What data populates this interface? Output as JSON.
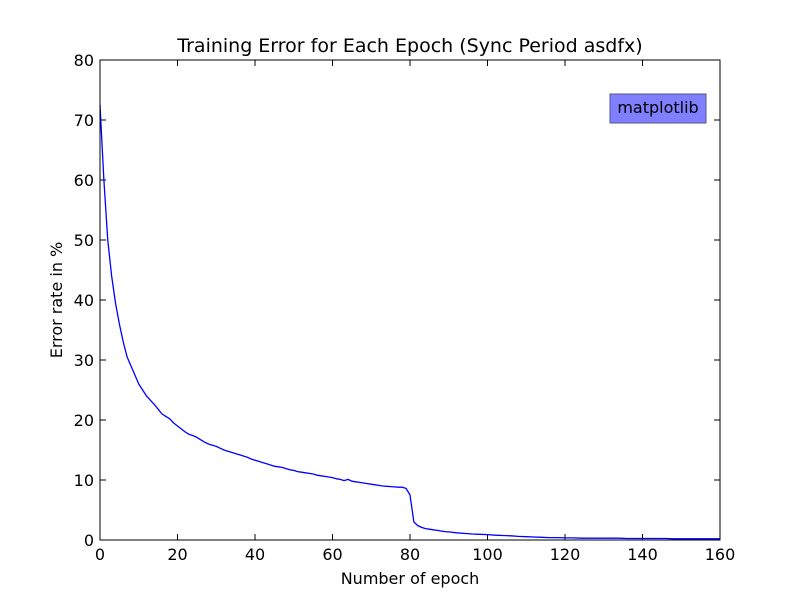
{
  "chart_data": {
    "type": "line",
    "title": "Training Error for Each Epoch (Sync Period asdfx)",
    "xlabel": "Number of epoch",
    "ylabel": "Error rate in %",
    "xlim": [
      0,
      160
    ],
    "ylim": [
      0,
      80
    ],
    "x_ticks": [
      0,
      20,
      40,
      60,
      80,
      100,
      120,
      140,
      160
    ],
    "y_ticks": [
      0,
      10,
      20,
      30,
      40,
      50,
      60,
      70,
      80
    ],
    "grid": false,
    "annotation": {
      "text": "matplotlib",
      "position": "top-right"
    },
    "colors": {
      "line": "#0000ff",
      "annotation_fill": "#7f7fff",
      "annotation_edge": "#555588"
    },
    "series": [
      {
        "x": [
          0,
          1,
          2,
          3,
          4,
          5,
          6,
          7,
          8,
          9,
          10,
          11,
          12,
          13,
          14,
          15,
          16,
          17,
          18,
          19,
          20,
          21,
          22,
          23,
          24,
          25,
          26,
          27,
          28,
          29,
          30,
          31,
          32,
          33,
          34,
          35,
          36,
          37,
          38,
          39,
          40,
          41,
          42,
          43,
          44,
          45,
          46,
          47,
          48,
          49,
          50,
          51,
          52,
          53,
          54,
          55,
          56,
          57,
          58,
          59,
          60,
          61,
          62,
          63,
          64,
          65,
          66,
          67,
          68,
          69,
          70,
          71,
          72,
          73,
          74,
          75,
          76,
          77,
          78,
          79,
          80,
          81,
          82,
          83,
          84,
          85,
          86,
          87,
          88,
          89,
          90,
          92,
          94,
          96,
          98,
          100,
          102,
          104,
          106,
          108,
          110,
          112,
          114,
          116,
          118,
          120,
          122,
          124,
          126,
          128,
          130,
          132,
          134,
          136,
          138,
          140,
          142,
          144,
          146,
          148,
          150,
          152,
          154,
          156,
          158,
          160
        ],
        "y": [
          72.5,
          60,
          50,
          44,
          39.5,
          36,
          33,
          30.5,
          29,
          27.5,
          26,
          25,
          24,
          23.3,
          22.6,
          21.8,
          21,
          20.6,
          20.2,
          19.5,
          19,
          18.5,
          18,
          17.6,
          17.4,
          17.1,
          16.7,
          16.3,
          16,
          15.8,
          15.6,
          15.3,
          15,
          14.8,
          14.6,
          14.4,
          14.2,
          14,
          13.8,
          13.5,
          13.3,
          13.1,
          12.9,
          12.7,
          12.5,
          12.3,
          12.2,
          12.1,
          11.9,
          11.7,
          11.6,
          11.4,
          11.3,
          11.2,
          11.1,
          11,
          10.8,
          10.7,
          10.6,
          10.5,
          10.4,
          10.2,
          10.1,
          9.9,
          10.1,
          9.8,
          9.7,
          9.6,
          9.5,
          9.4,
          9.3,
          9.2,
          9.1,
          9,
          8.95,
          8.9,
          8.85,
          8.8,
          8.8,
          8.6,
          7.5,
          3,
          2.4,
          2.1,
          1.9,
          1.8,
          1.7,
          1.6,
          1.5,
          1.4,
          1.35,
          1.2,
          1.1,
          1,
          0.95,
          0.9,
          0.8,
          0.75,
          0.7,
          0.6,
          0.55,
          0.5,
          0.45,
          0.4,
          0.4,
          0.35,
          0.35,
          0.3,
          0.3,
          0.3,
          0.3,
          0.3,
          0.3,
          0.25,
          0.25,
          0.25,
          0.25,
          0.25,
          0.25,
          0.2,
          0.2,
          0.2,
          0.2,
          0.2,
          0.2,
          0.2
        ]
      }
    ]
  }
}
